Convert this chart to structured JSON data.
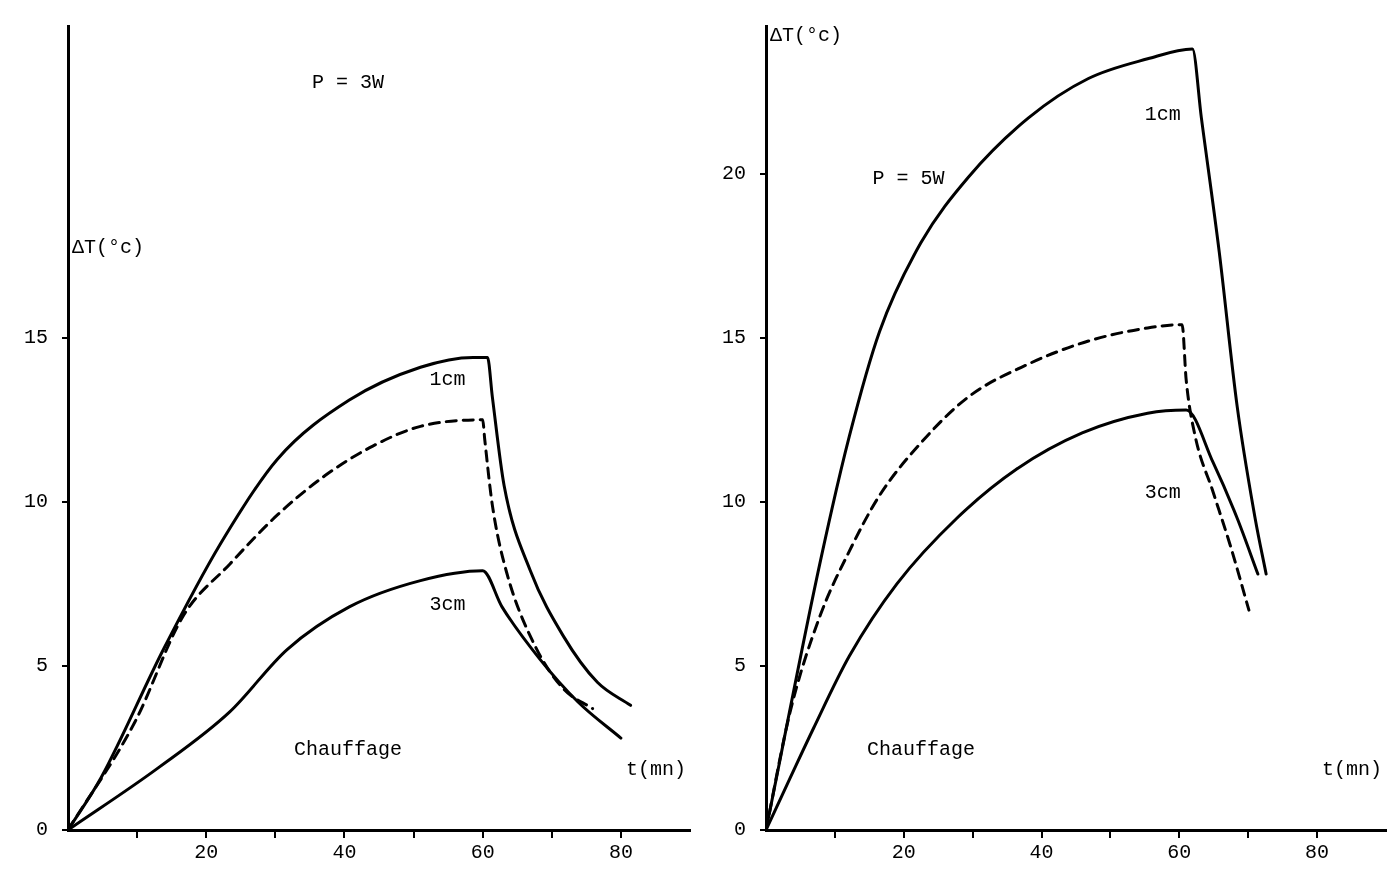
{
  "chart_data": [
    {
      "type": "line",
      "xlabel": "t(mn)",
      "ylabel": "ΔT(°c)",
      "xlim": [
        0,
        90
      ],
      "ylim": [
        0,
        24.5
      ],
      "xticks": [
        {
          "value": 10,
          "label": null
        },
        20,
        {
          "value": 30,
          "label": null
        },
        40,
        {
          "value": 50,
          "label": null
        },
        60,
        {
          "value": 70,
          "label": null
        },
        80
      ],
      "yticks": [
        0,
        5,
        10,
        15
      ],
      "grid": false,
      "legend": false,
      "marker": "none",
      "annotations": [
        "P = 3W",
        "Chauffage",
        "1cm",
        "3cm"
      ],
      "series": [
        {
          "color": "#000000",
          "line_style": "solid",
          "x": [
            0,
            4.8,
            13.8,
            22,
            30.3,
            40.7,
            51,
            58.6,
            60.7,
            61.4,
            63.1,
            66.9,
            71.7,
            76.6,
            81.4
          ],
          "values": [
            0,
            1.6,
            5.5,
            8.7,
            11.3,
            13.1,
            14.1,
            14.4,
            14.4,
            13.2,
            10.5,
            7.9,
            5.9,
            4.5,
            3.8
          ]
        },
        {
          "color": "#000000",
          "line_style": "dashed",
          "x": [
            0,
            9.7,
            16.6,
            23.4,
            30.3,
            37.2,
            44.1,
            51,
            60,
            60.3,
            61.4,
            63.4,
            67.6,
            71.7,
            75.9
          ],
          "values": [
            0,
            3.3,
            6.5,
            8.1,
            9.6,
            10.8,
            11.7,
            12.3,
            12.5,
            11.9,
            9.9,
            7.9,
            5.6,
            4.3,
            3.7
          ]
        },
        {
          "color": "#000000",
          "line_style": "solid",
          "x": [
            0,
            13.1,
            23.4,
            31.7,
            40.7,
            51,
            60,
            62.8,
            68.3,
            73.8,
            80
          ],
          "values": [
            0,
            1.9,
            3.6,
            5.5,
            6.8,
            7.6,
            7.9,
            6.8,
            5.2,
            3.9,
            2.8
          ]
        }
      ]
    },
    {
      "type": "line",
      "xlabel": "t(mn)",
      "ylabel": "ΔT(°c)",
      "xlim": [
        0,
        90
      ],
      "ylim": [
        0,
        24.5
      ],
      "xticks": [
        {
          "value": 10,
          "label": null
        },
        20,
        {
          "value": 30,
          "label": null
        },
        40,
        {
          "value": 50,
          "label": null
        },
        60,
        {
          "value": 70,
          "label": null
        },
        80
      ],
      "yticks": [
        0,
        5,
        10,
        15,
        20
      ],
      "grid": false,
      "legend": false,
      "marker": "none",
      "annotations": [
        "P = 5W",
        "Chauffage",
        "1cm",
        "3cm"
      ],
      "series": [
        {
          "color": "#000000",
          "line_style": "solid",
          "x": [
            0,
            7.8,
            12.1,
            16.5,
            22.5,
            29.4,
            38.1,
            46.8,
            55.4,
            61.9,
            63.2,
            65.8,
            68.4,
            71,
            72.6
          ],
          "values": [
            0,
            8.1,
            12,
            15.2,
            17.9,
            19.9,
            21.7,
            22.9,
            23.5,
            23.8,
            21.7,
            17.6,
            12.9,
            9.5,
            7.8
          ]
        },
        {
          "color": "#000000",
          "line_style": "dashed",
          "x": [
            0,
            3.5,
            7.8,
            12.1,
            16.5,
            22.5,
            29.4,
            38.1,
            46.8,
            55.4,
            60.4,
            61,
            62.3,
            64.9,
            67.5,
            70.1
          ],
          "values": [
            0,
            3.6,
            6.5,
            8.5,
            10.2,
            11.8,
            13.2,
            14.2,
            14.9,
            15.3,
            15.4,
            13.7,
            12,
            10.3,
            8.6,
            6.7
          ]
        },
        {
          "color": "#000000",
          "line_style": "solid",
          "x": [
            0,
            6.9,
            12.1,
            19,
            27.7,
            36.4,
            45.9,
            55.4,
            61,
            64.9,
            68.4,
            71.4
          ],
          "values": [
            0,
            3.1,
            5.3,
            7.5,
            9.5,
            11,
            12.1,
            12.7,
            12.8,
            11.2,
            9.5,
            7.8
          ]
        }
      ]
    }
  ]
}
